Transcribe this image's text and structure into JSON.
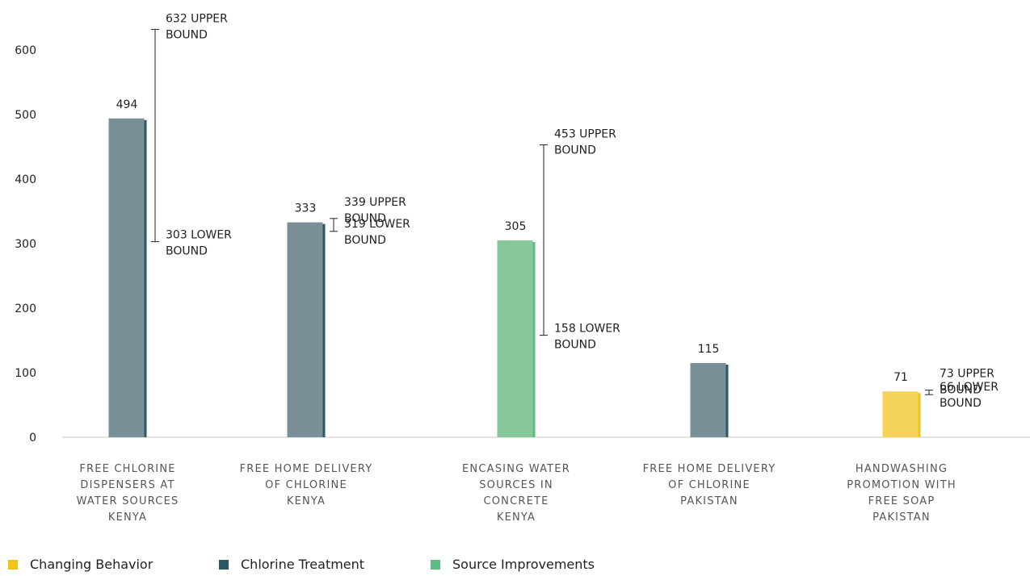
{
  "chart_data": {
    "type": "bar",
    "ylim": [
      0,
      600
    ],
    "yticks": [
      0,
      100,
      200,
      300,
      400,
      500,
      600
    ],
    "grid": false,
    "bars": [
      {
        "label_lines": [
          "FREE CHLORINE",
          "DISPENSERS AT",
          "WATER SOURCES",
          "KENYA"
        ],
        "value": 494,
        "value_label": "494",
        "group": "Chlorine Treatment",
        "upper": 632,
        "lower": 303,
        "upper_lines": [
          "632 UPPER",
          "BOUND"
        ],
        "lower_lines": [
          "303 LOWER",
          "BOUND"
        ]
      },
      {
        "label_lines": [
          "FREE HOME DELIVERY",
          "OF CHLORINE",
          "KENYA"
        ],
        "value": 333,
        "value_label": "333",
        "group": "Chlorine Treatment",
        "upper": 339,
        "lower": 319,
        "upper_lines": [
          "339 UPPER",
          "BOUND"
        ],
        "lower_lines": [
          "319 LOWER",
          "BOUND"
        ]
      },
      {
        "label_lines": [
          "ENCASING WATER",
          "SOURCES IN",
          "CONCRETE",
          "KENYA"
        ],
        "value": 305,
        "value_label": "305",
        "group": "Source Improvements",
        "upper": 453,
        "lower": 158,
        "upper_lines": [
          "453 UPPER",
          "BOUND"
        ],
        "lower_lines": [
          "158 LOWER",
          "BOUND"
        ]
      },
      {
        "label_lines": [
          "FREE HOME DELIVERY",
          "OF CHLORINE",
          "PAKISTAN"
        ],
        "value": 115,
        "value_label": "115",
        "group": "Chlorine Treatment",
        "upper": null,
        "lower": null,
        "upper_lines": [],
        "lower_lines": []
      },
      {
        "label_lines": [
          "HANDWASHING",
          "PROMOTION WITH",
          "FREE SOAP",
          "PAKISTAN"
        ],
        "value": 71,
        "value_label": "71",
        "group": "Changing Behavior",
        "upper": 73,
        "lower": 66,
        "upper_lines": [
          "73 UPPER",
          "BOUND"
        ],
        "lower_lines": [
          "66 LOWER",
          "BOUND"
        ]
      }
    ],
    "bar_colors": {
      "Chlorine Treatment": {
        "face": "#7b8f99",
        "edge": "#2c5964"
      },
      "Source Improvements": {
        "face": "#88c79c",
        "edge": "#5dbb83"
      },
      "Changing Behavior": {
        "face": "#f5d25a",
        "edge": "#f2c419"
      }
    },
    "legend": [
      {
        "name": "Changing Behavior",
        "color": "#f2c419"
      },
      {
        "name": "Chlorine Treatment",
        "color": "#2c5964"
      },
      {
        "name": "Source Improvements",
        "color": "#5dbb83"
      }
    ]
  }
}
